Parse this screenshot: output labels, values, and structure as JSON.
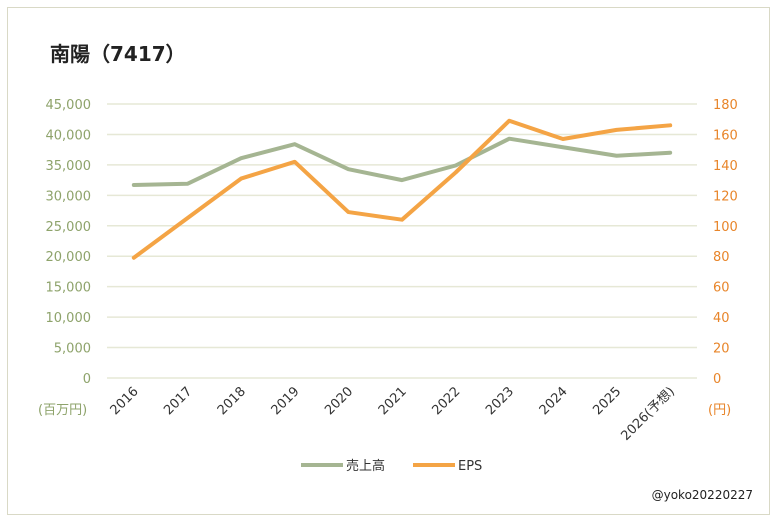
{
  "chart_data": {
    "type": "line",
    "title": "南陽（7417）",
    "categories": [
      "2016",
      "2017",
      "2018",
      "2019",
      "2020",
      "2021",
      "2022",
      "2023",
      "2024",
      "2025",
      "2026(予想)"
    ],
    "series": [
      {
        "name": "売上高",
        "axis": "left",
        "color": "#a5b592",
        "values": [
          31700,
          31900,
          36100,
          38400,
          34300,
          32500,
          34900,
          39300,
          37900,
          36500,
          37000
        ]
      },
      {
        "name": "EPS",
        "axis": "right",
        "color": "#f4a445",
        "values": [
          79,
          105,
          131,
          142,
          109,
          104,
          135,
          169,
          157,
          163,
          166
        ]
      }
    ],
    "y_left": {
      "unit_label": "(百万円)",
      "ylim": [
        0,
        45000
      ],
      "ticks": [
        "0",
        "5,000",
        "10,000",
        "15,000",
        "20,000",
        "25,000",
        "30,000",
        "35,000",
        "40,000",
        "45,000"
      ]
    },
    "y_right": {
      "unit_label": "(円)",
      "ylim": [
        0,
        180
      ],
      "ticks": [
        "0",
        "20",
        "40",
        "60",
        "80",
        "100",
        "120",
        "140",
        "160",
        "180"
      ]
    },
    "grid": true,
    "legend": "bottom"
  },
  "credit": "@yoko20220227"
}
